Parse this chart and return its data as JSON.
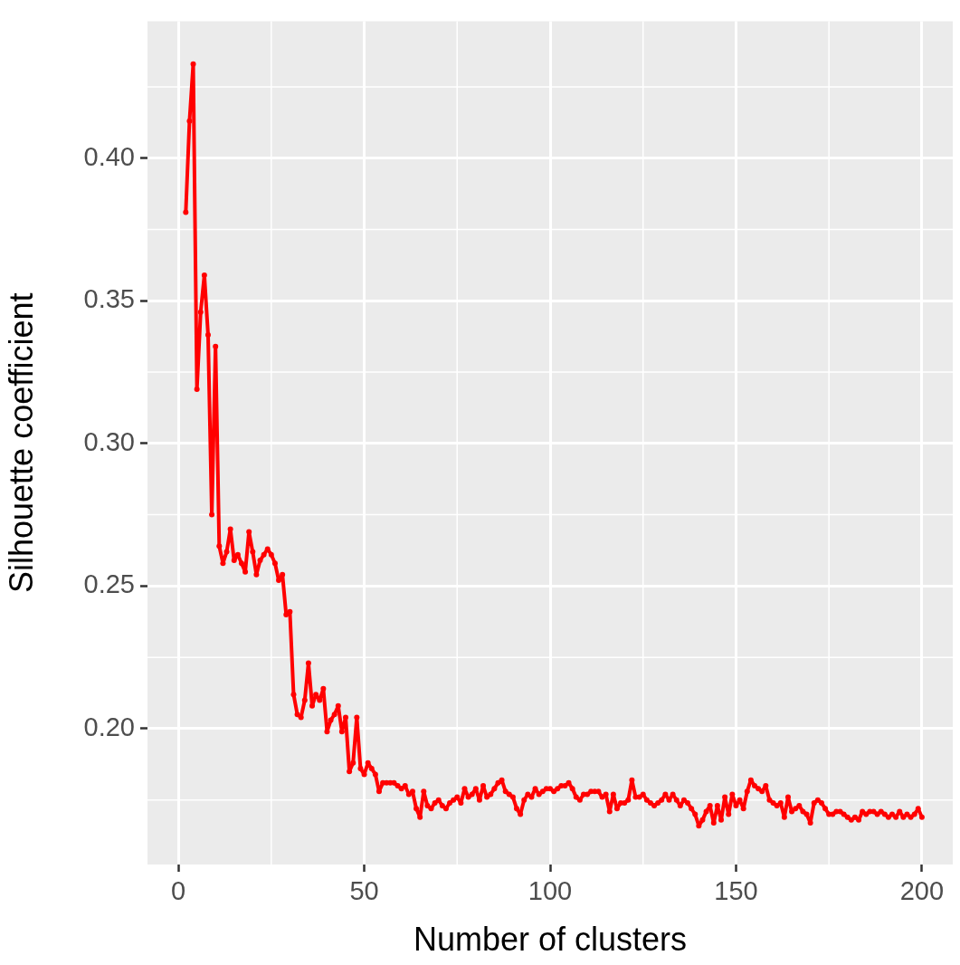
{
  "chart_data": {
    "type": "line",
    "xlabel": "Number of clusters",
    "ylabel": "Silhouette coefficient",
    "marker": "circle",
    "line_style": "solid",
    "x": [
      2,
      3,
      4,
      5,
      6,
      7,
      8,
      9,
      10,
      11,
      12,
      13,
      14,
      15,
      16,
      17,
      18,
      19,
      20,
      21,
      22,
      23,
      24,
      25,
      26,
      27,
      28,
      29,
      30,
      31,
      32,
      33,
      34,
      35,
      36,
      37,
      38,
      39,
      40,
      41,
      42,
      43,
      44,
      45,
      46,
      47,
      48,
      49,
      50,
      51,
      52,
      53,
      54,
      55,
      56,
      57,
      58,
      59,
      60,
      61,
      62,
      63,
      64,
      65,
      66,
      67,
      68,
      69,
      70,
      71,
      72,
      73,
      74,
      75,
      76,
      77,
      78,
      79,
      80,
      81,
      82,
      83,
      84,
      85,
      86,
      87,
      88,
      89,
      90,
      91,
      92,
      93,
      94,
      95,
      96,
      97,
      98,
      99,
      100,
      101,
      102,
      103,
      104,
      105,
      106,
      107,
      108,
      109,
      110,
      111,
      112,
      113,
      114,
      115,
      116,
      117,
      118,
      119,
      120,
      121,
      122,
      123,
      124,
      125,
      126,
      127,
      128,
      129,
      130,
      131,
      132,
      133,
      134,
      135,
      136,
      137,
      138,
      139,
      140,
      141,
      142,
      143,
      144,
      145,
      146,
      147,
      148,
      149,
      150,
      151,
      152,
      153,
      154,
      155,
      156,
      157,
      158,
      159,
      160,
      161,
      162,
      163,
      164,
      165,
      166,
      167,
      168,
      169,
      170,
      171,
      172,
      173,
      174,
      175,
      176,
      177,
      178,
      179,
      180,
      181,
      182,
      183,
      184,
      185,
      186,
      187,
      188,
      189,
      190,
      191,
      192,
      193,
      194,
      195,
      196,
      197,
      198,
      199,
      200
    ],
    "series": [
      {
        "color": "#ff0000",
        "values": [
          0.381,
          0.413,
          0.433,
          0.319,
          0.346,
          0.359,
          0.338,
          0.275,
          0.334,
          0.264,
          0.258,
          0.262,
          0.27,
          0.259,
          0.261,
          0.258,
          0.255,
          0.269,
          0.262,
          0.254,
          0.259,
          0.261,
          0.263,
          0.261,
          0.258,
          0.252,
          0.254,
          0.24,
          0.241,
          0.212,
          0.205,
          0.204,
          0.21,
          0.223,
          0.208,
          0.212,
          0.21,
          0.214,
          0.199,
          0.203,
          0.205,
          0.208,
          0.199,
          0.204,
          0.185,
          0.188,
          0.204,
          0.186,
          0.184,
          0.188,
          0.186,
          0.184,
          0.178,
          0.181,
          0.181,
          0.181,
          0.181,
          0.18,
          0.179,
          0.18,
          0.177,
          0.178,
          0.172,
          0.169,
          0.178,
          0.173,
          0.172,
          0.174,
          0.175,
          0.173,
          0.172,
          0.174,
          0.175,
          0.176,
          0.174,
          0.179,
          0.176,
          0.177,
          0.179,
          0.175,
          0.18,
          0.176,
          0.177,
          0.179,
          0.181,
          0.182,
          0.178,
          0.177,
          0.176,
          0.172,
          0.17,
          0.175,
          0.177,
          0.176,
          0.179,
          0.177,
          0.178,
          0.179,
          0.179,
          0.178,
          0.179,
          0.18,
          0.18,
          0.181,
          0.179,
          0.176,
          0.175,
          0.177,
          0.177,
          0.178,
          0.178,
          0.178,
          0.176,
          0.177,
          0.171,
          0.177,
          0.172,
          0.174,
          0.174,
          0.175,
          0.182,
          0.176,
          0.176,
          0.177,
          0.175,
          0.174,
          0.173,
          0.174,
          0.175,
          0.177,
          0.175,
          0.177,
          0.175,
          0.173,
          0.175,
          0.174,
          0.172,
          0.17,
          0.166,
          0.168,
          0.171,
          0.173,
          0.167,
          0.173,
          0.168,
          0.176,
          0.17,
          0.177,
          0.173,
          0.175,
          0.172,
          0.178,
          0.182,
          0.18,
          0.179,
          0.178,
          0.18,
          0.175,
          0.174,
          0.173,
          0.174,
          0.169,
          0.176,
          0.171,
          0.172,
          0.173,
          0.171,
          0.17,
          0.167,
          0.174,
          0.175,
          0.174,
          0.172,
          0.17,
          0.17,
          0.171,
          0.171,
          0.17,
          0.169,
          0.168,
          0.169,
          0.168,
          0.171,
          0.17,
          0.171,
          0.171,
          0.17,
          0.171,
          0.17,
          0.169,
          0.17,
          0.169,
          0.171,
          0.169,
          0.17,
          0.169,
          0.17,
          0.172,
          0.169
        ]
      }
    ],
    "xlim": [
      -8.3,
      208.3
    ],
    "ylim": [
      0.1524,
      0.448
    ],
    "xticks": [
      0,
      50,
      100,
      150,
      200
    ],
    "yticks": [
      {
        "value": 0.2,
        "label": "0.20"
      },
      {
        "value": 0.25,
        "label": "0.25"
      },
      {
        "value": 0.3,
        "label": "0.30"
      },
      {
        "value": 0.35,
        "label": "0.35"
      },
      {
        "value": 0.4,
        "label": "0.40"
      }
    ],
    "grid": true
  }
}
